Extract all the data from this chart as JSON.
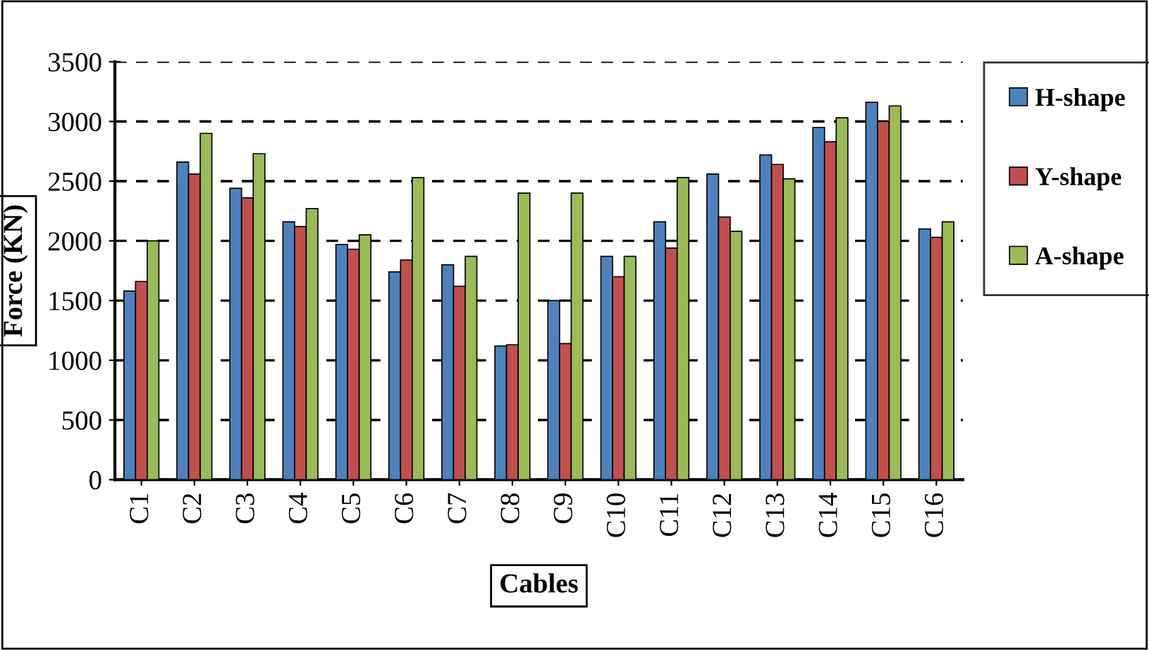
{
  "chart_data": {
    "type": "bar",
    "xlabel": "Cables",
    "ylabel": "Force (KN)",
    "categories": [
      "C1",
      "C2",
      "C3",
      "C4",
      "C5",
      "C6",
      "C7",
      "C8",
      "C9",
      "C10",
      "C11",
      "C12",
      "C13",
      "C14",
      "C15",
      "C16"
    ],
    "series": [
      {
        "name": "H-shape",
        "color": "#4f81bd",
        "values": [
          1580,
          2660,
          2440,
          2160,
          1970,
          1740,
          1800,
          1120,
          1500,
          1870,
          2160,
          2560,
          2720,
          2950,
          3160,
          2100
        ]
      },
      {
        "name": "Y-shape",
        "color": "#c0504d",
        "values": [
          1660,
          2560,
          2360,
          2120,
          1930,
          1840,
          1620,
          1130,
          1140,
          1700,
          1940,
          2200,
          2640,
          2830,
          3000,
          2030
        ]
      },
      {
        "name": "A-shape",
        "color": "#9bbb59",
        "values": [
          2000,
          2900,
          2730,
          2270,
          2050,
          2530,
          1870,
          2400,
          2400,
          1870,
          2530,
          2080,
          2520,
          3030,
          3130,
          2160
        ]
      }
    ],
    "ylim": [
      0,
      3500
    ],
    "yticks": [
      0,
      500,
      1000,
      1500,
      2000,
      2500,
      3000,
      3500
    ],
    "grid": "y",
    "legend": "right"
  }
}
